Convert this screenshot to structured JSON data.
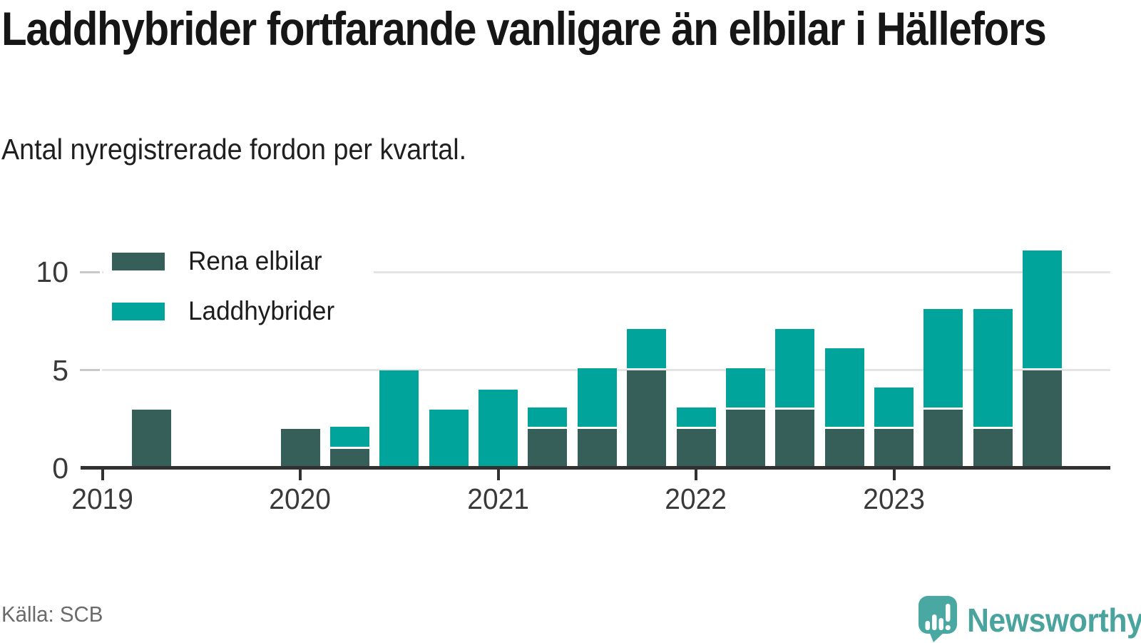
{
  "header": {
    "title": "Laddhybrider fortfarande vanligare än elbilar i Hällefors",
    "subtitle": "Antal nyregistrerade fordon per kvartal."
  },
  "legend": {
    "items": [
      {
        "label": "Rena elbilar",
        "color": "#365f5a"
      },
      {
        "label": "Laddhybrider",
        "color": "#00a49b"
      }
    ]
  },
  "footer": {
    "source": "Källa: SCB",
    "brand_name": "Newsworthy"
  },
  "colors": {
    "electric_dark": "#365f5a",
    "hybrid_teal": "#00a49b",
    "axis": "#313131",
    "gridline": "#e4e4e4",
    "gridline_edge_dash": "#c8c8c8",
    "brand_text": "#4ba39e",
    "brand_icon": "#4aa8a2",
    "source_text": "#6a6a6a"
  },
  "chart_data": {
    "type": "bar",
    "stacked": true,
    "title": "Laddhybrider fortfarande vanligare än elbilar i Hällefors",
    "subtitle": "Antal nyregistrerade fordon per kvartal.",
    "x_unit": "quarter",
    "quarters": [
      "2019 K1",
      "2019 K2",
      "2019 K3",
      "2019 K4",
      "2020 K1",
      "2020 K2",
      "2020 K3",
      "2020 K4",
      "2021 K1",
      "2021 K2",
      "2021 K3",
      "2021 K4",
      "2022 K1",
      "2022 K2",
      "2022 K3",
      "2022 K4",
      "2023 K1",
      "2023 K2",
      "2023 K3",
      "2023 K4"
    ],
    "series": [
      {
        "name": "Rena elbilar",
        "color": "#365f5a",
        "values": [
          0,
          3,
          0,
          0,
          2,
          1,
          0,
          0,
          0,
          2,
          2,
          5,
          2,
          3,
          3,
          2,
          2,
          3,
          2,
          5
        ]
      },
      {
        "name": "Laddhybrider",
        "color": "#00a49b",
        "values": [
          0,
          0,
          0,
          0,
          0,
          1,
          5,
          3,
          4,
          1,
          3,
          2,
          1,
          2,
          4,
          4,
          2,
          5,
          6,
          6
        ]
      }
    ],
    "totals": [
      0,
      3,
      0,
      0,
      2,
      2,
      5,
      3,
      4,
      3,
      5,
      7,
      3,
      5,
      7,
      6,
      4,
      8,
      8,
      11
    ],
    "x_tick_labels": [
      "2019",
      "2020",
      "2021",
      "2022",
      "2023"
    ],
    "x_tick_quarter_positions": [
      0,
      4,
      8,
      12,
      16
    ],
    "y_ticks": [
      0,
      5,
      10
    ],
    "y_gridlines": [
      5,
      10
    ],
    "ylim": [
      0,
      11.5
    ],
    "grid": "horizontal",
    "legend_position": "top-left-inside"
  }
}
